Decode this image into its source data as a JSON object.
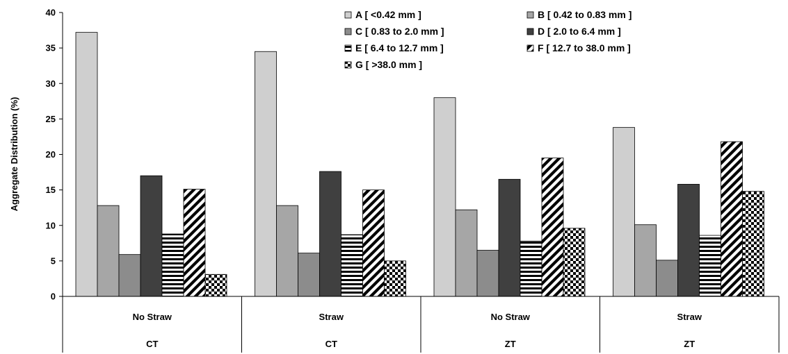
{
  "chart_data": {
    "type": "bar",
    "title": "",
    "ylabel": "Aggregate Distribution (%)",
    "ylim": [
      0,
      40
    ],
    "yticks": [
      0,
      5,
      10,
      15,
      20,
      25,
      30,
      35,
      40
    ],
    "grid": false,
    "legend_position": "top-right",
    "categories": [
      {
        "treatment": "No Straw",
        "tillage": "CT"
      },
      {
        "treatment": "Straw",
        "tillage": "CT"
      },
      {
        "treatment": "No Straw",
        "tillage": "ZT"
      },
      {
        "treatment": "Straw",
        "tillage": "ZT"
      }
    ],
    "series": [
      {
        "name": "A [ <0.42 mm ]",
        "color": "#cfcfcf",
        "pattern": "solid",
        "values": [
          37.2,
          34.5,
          28.0,
          23.8
        ]
      },
      {
        "name": "B [ 0.42 to 0.83 mm ]",
        "color": "#a6a6a6",
        "pattern": "solid",
        "values": [
          12.8,
          12.8,
          12.2,
          10.1
        ]
      },
      {
        "name": "C [ 0.83 to 2.0 mm ]",
        "color": "#8c8c8c",
        "pattern": "solid",
        "values": [
          5.9,
          6.1,
          6.5,
          5.1
        ]
      },
      {
        "name": "D [ 2.0 to 6.4 mm ]",
        "color": "#404040",
        "pattern": "solid",
        "values": [
          17.0,
          17.6,
          16.5,
          15.8
        ]
      },
      {
        "name": "E [ 6.4 to 12.7 mm ]",
        "color": "#000000",
        "pattern": "hstripes",
        "values": [
          8.8,
          8.7,
          7.8,
          8.6
        ]
      },
      {
        "name": "F [ 12.7 to 38.0 mm ]",
        "color": "#000000",
        "pattern": "diagonal",
        "values": [
          15.1,
          15.0,
          19.5,
          21.8
        ]
      },
      {
        "name": "G [ >38.0 mm ]",
        "color": "#000000",
        "pattern": "checker",
        "values": [
          3.1,
          5.0,
          9.6,
          14.8
        ]
      }
    ]
  }
}
